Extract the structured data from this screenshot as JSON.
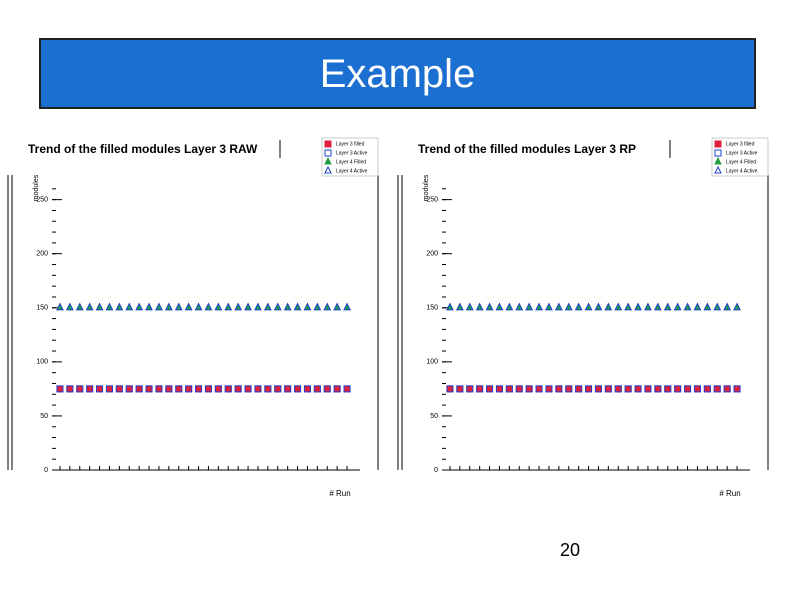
{
  "slide": {
    "title": "Example",
    "page_number": "20"
  },
  "chart_data": [
    {
      "type": "scatter",
      "title": "Trend of the filled modules Layer 3 RAW",
      "x_label": "# Run",
      "y_label": "modules",
      "categories": [
        null,
        null,
        null,
        null,
        null,
        null,
        null,
        null,
        null,
        null,
        null,
        null,
        null,
        null,
        null,
        null,
        null,
        null,
        null,
        null,
        null,
        null,
        null,
        null,
        null,
        null,
        null,
        null,
        null,
        null
      ],
      "series": [
        {
          "name": "Layer 3 filled",
          "color": "#e0203a",
          "marker": "square-filled",
          "values": [
            75,
            75,
            75,
            75,
            75,
            75,
            75,
            75,
            75,
            75,
            75,
            75,
            75,
            75,
            75,
            75,
            75,
            75,
            75,
            75,
            75,
            75,
            75,
            75,
            75,
            75,
            75,
            75,
            75,
            75
          ]
        },
        {
          "name": "Layer 3 Active",
          "color": "#2040d0",
          "marker": "square-open",
          "values": [
            75,
            75,
            75,
            75,
            75,
            75,
            75,
            75,
            75,
            75,
            75,
            75,
            75,
            75,
            75,
            75,
            75,
            75,
            75,
            75,
            75,
            75,
            75,
            75,
            75,
            75,
            75,
            75,
            75,
            75
          ]
        },
        {
          "name": "Layer 4 Filled",
          "color": "#20a040",
          "marker": "triangle-filled",
          "values": [
            150,
            150,
            150,
            150,
            150,
            150,
            150,
            150,
            150,
            150,
            150,
            150,
            150,
            150,
            150,
            150,
            150,
            150,
            150,
            150,
            150,
            150,
            150,
            150,
            150,
            150,
            150,
            150,
            150,
            150
          ]
        },
        {
          "name": "Layer 4 Active",
          "color": "#2040d0",
          "marker": "triangle-open",
          "values": [
            150,
            150,
            150,
            150,
            150,
            150,
            150,
            150,
            150,
            150,
            150,
            150,
            150,
            150,
            150,
            150,
            150,
            150,
            150,
            150,
            150,
            150,
            150,
            150,
            150,
            150,
            150,
            150,
            150,
            150
          ]
        }
      ],
      "ylim": [
        0,
        270
      ],
      "yticks": [
        0,
        50,
        100,
        150,
        200,
        250
      ],
      "legend": "top-right"
    },
    {
      "type": "scatter",
      "title": "Trend of the filled modules Layer 3 RP",
      "x_label": "# Run",
      "y_label": "modules",
      "categories": [
        null,
        null,
        null,
        null,
        null,
        null,
        null,
        null,
        null,
        null,
        null,
        null,
        null,
        null,
        null,
        null,
        null,
        null,
        null,
        null,
        null,
        null,
        null,
        null,
        null,
        null,
        null,
        null,
        null,
        null
      ],
      "series": [
        {
          "name": "Layer 3 filled",
          "color": "#e0203a",
          "marker": "square-filled",
          "values": [
            75,
            75,
            75,
            75,
            75,
            75,
            75,
            75,
            75,
            75,
            75,
            75,
            75,
            75,
            75,
            75,
            75,
            75,
            75,
            75,
            75,
            75,
            75,
            75,
            75,
            75,
            75,
            75,
            75,
            75
          ]
        },
        {
          "name": "Layer 3 Active",
          "color": "#2040d0",
          "marker": "square-open",
          "values": [
            75,
            75,
            75,
            75,
            75,
            75,
            75,
            75,
            75,
            75,
            75,
            75,
            75,
            75,
            75,
            75,
            75,
            75,
            75,
            75,
            75,
            75,
            75,
            75,
            75,
            75,
            75,
            75,
            75,
            75
          ]
        },
        {
          "name": "Layer 4 Filled",
          "color": "#20a040",
          "marker": "triangle-filled",
          "values": [
            150,
            150,
            150,
            150,
            150,
            150,
            150,
            150,
            150,
            150,
            150,
            150,
            150,
            150,
            150,
            150,
            150,
            150,
            150,
            150,
            150,
            150,
            150,
            150,
            150,
            150,
            150,
            150,
            150,
            150
          ]
        },
        {
          "name": "Layer 4 Active",
          "color": "#2040d0",
          "marker": "triangle-open",
          "values": [
            150,
            150,
            150,
            150,
            150,
            150,
            150,
            150,
            150,
            150,
            150,
            150,
            150,
            150,
            150,
            150,
            150,
            150,
            150,
            150,
            150,
            150,
            150,
            150,
            150,
            150,
            150,
            150,
            150,
            150
          ]
        }
      ],
      "ylim": [
        0,
        270
      ],
      "yticks": [
        0,
        50,
        100,
        150,
        200,
        250
      ],
      "legend": "top-right"
    }
  ]
}
